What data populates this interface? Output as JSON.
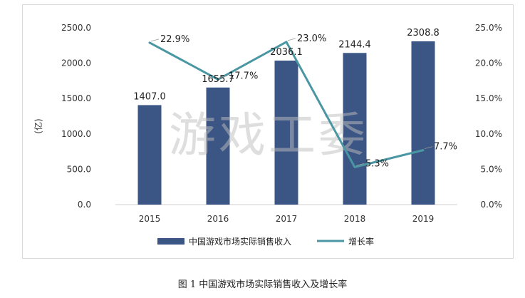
{
  "chart_data": {
    "type": "bar+line",
    "categories": [
      "2015",
      "2016",
      "2017",
      "2018",
      "2019"
    ],
    "series": [
      {
        "name": "中国游戏市场实际销售收入",
        "type": "bar",
        "axis": "left",
        "values": [
          1407.0,
          1655.7,
          2036.1,
          2144.4,
          2308.8
        ],
        "labels": [
          "1407.0",
          "1655.7",
          "2036.1",
          "2144.4",
          "2308.8"
        ]
      },
      {
        "name": "增长率",
        "type": "line",
        "axis": "right",
        "values": [
          22.9,
          17.7,
          23.0,
          5.3,
          7.7
        ],
        "labels": [
          "22.9%",
          "17.7%",
          "23.0%",
          "5.3%",
          "7.7%"
        ]
      }
    ],
    "ylabel": "(亿)",
    "ylim": [
      0,
      2500
    ],
    "y2lim": [
      0,
      25
    ],
    "yticks": [
      "0.0",
      "500.0",
      "1000.0",
      "1500.0",
      "2000.0",
      "2500.0"
    ],
    "y2ticks": [
      "0.0%",
      "5.0%",
      "10.0%",
      "15.0%",
      "20.0%",
      "25.0%"
    ],
    "grid": false,
    "legend": "bottom",
    "colors": {
      "bar": "#3b5584",
      "line": "#4a97a3"
    }
  },
  "watermark": "游戏工委",
  "caption": "图 1  中国游戏市场实际销售收入及增长率"
}
